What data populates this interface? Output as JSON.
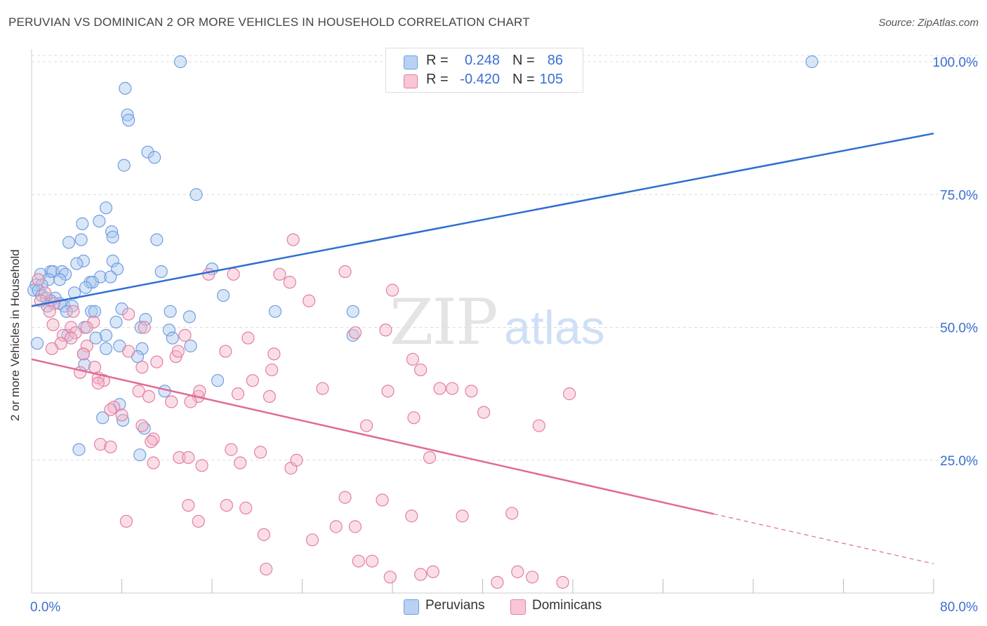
{
  "title": "PERUVIAN VS DOMINICAN 2 OR MORE VEHICLES IN HOUSEHOLD CORRELATION CHART",
  "source": "Source: ZipAtlas.com",
  "legend_top": [
    {
      "r_label": "R =",
      "r_value": "0.248",
      "n_label": "N =",
      "n_value": "86"
    },
    {
      "r_label": "R =",
      "r_value": "-0.420",
      "n_label": "N =",
      "n_value": "105"
    }
  ],
  "chart_data": {
    "type": "scatter",
    "title": "PERUVIAN VS DOMINICAN 2 OR MORE VEHICLES IN HOUSEHOLD CORRELATION CHART",
    "xlabel": "",
    "ylabel": "2 or more Vehicles in Household",
    "xlim": [
      0,
      80
    ],
    "ylim": [
      0,
      102
    ],
    "x_tick_labels": [
      "0.0%",
      "80.0%"
    ],
    "y_ticks": [
      25,
      50,
      75,
      100
    ],
    "y_tick_labels": [
      "25.0%",
      "50.0%",
      "75.0%",
      "100.0%"
    ],
    "grid": true,
    "legend_position": "top-center and bottom",
    "watermark": "ZIPatlas",
    "series": [
      {
        "name": "Peruvians",
        "color": "#6f9fe0",
        "fill": "#aac8f0",
        "r": 0.248,
        "n": 86,
        "trend": {
          "x0": 0,
          "y0": 54.0,
          "x1": 80,
          "y1": 86.5,
          "dashed_from": null
        },
        "points": [
          [
            13.2,
            100
          ],
          [
            69.2,
            100
          ],
          [
            8.3,
            95
          ],
          [
            8.5,
            90
          ],
          [
            8.6,
            89
          ],
          [
            10.3,
            83
          ],
          [
            10.9,
            82
          ],
          [
            8.2,
            80.5
          ],
          [
            14.6,
            75
          ],
          [
            6.6,
            72.5
          ],
          [
            6.0,
            70
          ],
          [
            4.5,
            69.5
          ],
          [
            7.1,
            68
          ],
          [
            7.2,
            67
          ],
          [
            11.1,
            66.5
          ],
          [
            3.3,
            66
          ],
          [
            4.4,
            66.5
          ],
          [
            7.2,
            62.5
          ],
          [
            4.6,
            62.5
          ],
          [
            4.0,
            62
          ],
          [
            7.6,
            61
          ],
          [
            16.0,
            61
          ],
          [
            11.5,
            60.5
          ],
          [
            1.7,
            60.5
          ],
          [
            1.9,
            60.5
          ],
          [
            2.7,
            60.5
          ],
          [
            3.0,
            60
          ],
          [
            0.8,
            60
          ],
          [
            6.1,
            59.5
          ],
          [
            7.0,
            59.5
          ],
          [
            1.5,
            59
          ],
          [
            2.5,
            59
          ],
          [
            5.2,
            58.5
          ],
          [
            5.4,
            58.5
          ],
          [
            0.4,
            58
          ],
          [
            0.9,
            58
          ],
          [
            4.8,
            57.5
          ],
          [
            0.2,
            57
          ],
          [
            0.6,
            57
          ],
          [
            3.8,
            56.5
          ],
          [
            17.0,
            56
          ],
          [
            0.9,
            56
          ],
          [
            1.3,
            55.5
          ],
          [
            2.1,
            55.5
          ],
          [
            1.7,
            55
          ],
          [
            2.5,
            54.5
          ],
          [
            2.9,
            54
          ],
          [
            3.6,
            54
          ],
          [
            8.0,
            53.5
          ],
          [
            1.4,
            54
          ],
          [
            5.3,
            53
          ],
          [
            5.6,
            53
          ],
          [
            3.1,
            53
          ],
          [
            12.3,
            53
          ],
          [
            21.6,
            53
          ],
          [
            28.5,
            53
          ],
          [
            14.0,
            52
          ],
          [
            10.1,
            51.5
          ],
          [
            7.5,
            51
          ],
          [
            9.7,
            50
          ],
          [
            4.7,
            50
          ],
          [
            12.2,
            49.5
          ],
          [
            6.6,
            48.5
          ],
          [
            5.7,
            48
          ],
          [
            12.5,
            48
          ],
          [
            3.2,
            48.5
          ],
          [
            28.5,
            48.5
          ],
          [
            0.5,
            47
          ],
          [
            7.8,
            46.5
          ],
          [
            14.1,
            46.5
          ],
          [
            6.6,
            46
          ],
          [
            9.8,
            46
          ],
          [
            4.6,
            45
          ],
          [
            9.4,
            44.5
          ],
          [
            4.7,
            43
          ],
          [
            16.5,
            40
          ],
          [
            11.8,
            38
          ],
          [
            7.8,
            35.5
          ],
          [
            8.1,
            32.5
          ],
          [
            6.3,
            33
          ],
          [
            10.0,
            31
          ],
          [
            4.2,
            27
          ],
          [
            9.6,
            26
          ]
        ]
      },
      {
        "name": "Dominicans",
        "color": "#e37fa0",
        "fill": "#f4b6c9",
        "r": -0.42,
        "n": 105,
        "trend": {
          "x0": 0,
          "y0": 44.0,
          "x1": 80,
          "y1": 5.5,
          "dashed_from": 60.5
        },
        "points": [
          [
            0.6,
            59
          ],
          [
            1.2,
            56.5
          ],
          [
            0.8,
            55
          ],
          [
            2.0,
            54.5
          ],
          [
            1.6,
            53
          ],
          [
            3.7,
            53
          ],
          [
            8.6,
            52.5
          ],
          [
            5.5,
            51
          ],
          [
            1.9,
            50.5
          ],
          [
            3.5,
            50
          ],
          [
            4.9,
            50
          ],
          [
            10.0,
            50
          ],
          [
            3.9,
            49
          ],
          [
            2.8,
            48.5
          ],
          [
            13.6,
            48.5
          ],
          [
            3.5,
            48
          ],
          [
            2.6,
            47
          ],
          [
            4.9,
            46.5
          ],
          [
            1.8,
            46
          ],
          [
            8.6,
            45.5
          ],
          [
            4.6,
            45
          ],
          [
            12.8,
            44.5
          ],
          [
            11.1,
            43.5
          ],
          [
            5.6,
            42.5
          ],
          [
            9.8,
            42.5
          ],
          [
            4.3,
            41.5
          ],
          [
            5.9,
            40.5
          ],
          [
            6.4,
            40
          ],
          [
            5.9,
            39.5
          ],
          [
            9.5,
            38
          ],
          [
            10.4,
            37
          ],
          [
            14.8,
            37
          ],
          [
            12.4,
            36
          ],
          [
            14.1,
            36
          ],
          [
            7.3,
            35
          ],
          [
            7.0,
            34.5
          ],
          [
            14.9,
            38
          ],
          [
            18.3,
            37.5
          ],
          [
            8.0,
            33.5
          ],
          [
            9.8,
            31.5
          ],
          [
            10.8,
            29
          ],
          [
            6.1,
            28
          ],
          [
            7.0,
            27.5
          ],
          [
            10.6,
            28.5
          ],
          [
            13.1,
            25.5
          ],
          [
            13.9,
            25.5
          ],
          [
            10.8,
            24.5
          ],
          [
            15.1,
            24
          ],
          [
            18.5,
            24.5
          ],
          [
            20.3,
            26.5
          ],
          [
            23.0,
            23.5
          ],
          [
            17.7,
            27
          ],
          [
            22.0,
            60
          ],
          [
            15.7,
            60
          ],
          [
            17.9,
            60
          ],
          [
            27.8,
            60.5
          ],
          [
            22.9,
            58.5
          ],
          [
            23.2,
            66.5
          ],
          [
            24.6,
            55
          ],
          [
            32.0,
            57
          ],
          [
            19.2,
            48
          ],
          [
            31.4,
            49.5
          ],
          [
            34.5,
            42
          ],
          [
            33.8,
            44
          ],
          [
            28.7,
            49
          ],
          [
            17.2,
            45.5
          ],
          [
            19.6,
            40
          ],
          [
            21.5,
            45
          ],
          [
            21.3,
            42
          ],
          [
            21.1,
            37
          ],
          [
            25.8,
            38.5
          ],
          [
            31.6,
            38
          ],
          [
            36.2,
            38.5
          ],
          [
            37.3,
            38.5
          ],
          [
            39.0,
            38
          ],
          [
            47.7,
            37.5
          ],
          [
            33.9,
            33
          ],
          [
            40.1,
            34
          ],
          [
            45.0,
            31.5
          ],
          [
            29.7,
            31.5
          ],
          [
            23.5,
            25
          ],
          [
            35.3,
            25.5
          ],
          [
            13.9,
            16.5
          ],
          [
            17.3,
            16.5
          ],
          [
            19.0,
            16
          ],
          [
            14.8,
            13.5
          ],
          [
            8.4,
            13.5
          ],
          [
            27.8,
            18
          ],
          [
            31.1,
            17.5
          ],
          [
            27.0,
            12.5
          ],
          [
            28.7,
            12.5
          ],
          [
            33.7,
            14.5
          ],
          [
            38.2,
            14.5
          ],
          [
            42.6,
            15
          ],
          [
            20.6,
            11
          ],
          [
            24.9,
            10
          ],
          [
            29.0,
            6
          ],
          [
            30.2,
            6
          ],
          [
            20.8,
            4.5
          ],
          [
            31.8,
            3
          ],
          [
            35.6,
            4
          ],
          [
            34.5,
            3.5
          ],
          [
            41.3,
            2
          ],
          [
            43.1,
            4
          ],
          [
            44.4,
            3
          ],
          [
            47.1,
            2
          ],
          [
            13.0,
            45.5
          ]
        ]
      }
    ]
  },
  "legend_bottom": [
    {
      "label": "Peruvians"
    },
    {
      "label": "Dominicans"
    }
  ],
  "colors": {
    "blue_text": "#3b6fd0",
    "grid": "#dddddd"
  }
}
